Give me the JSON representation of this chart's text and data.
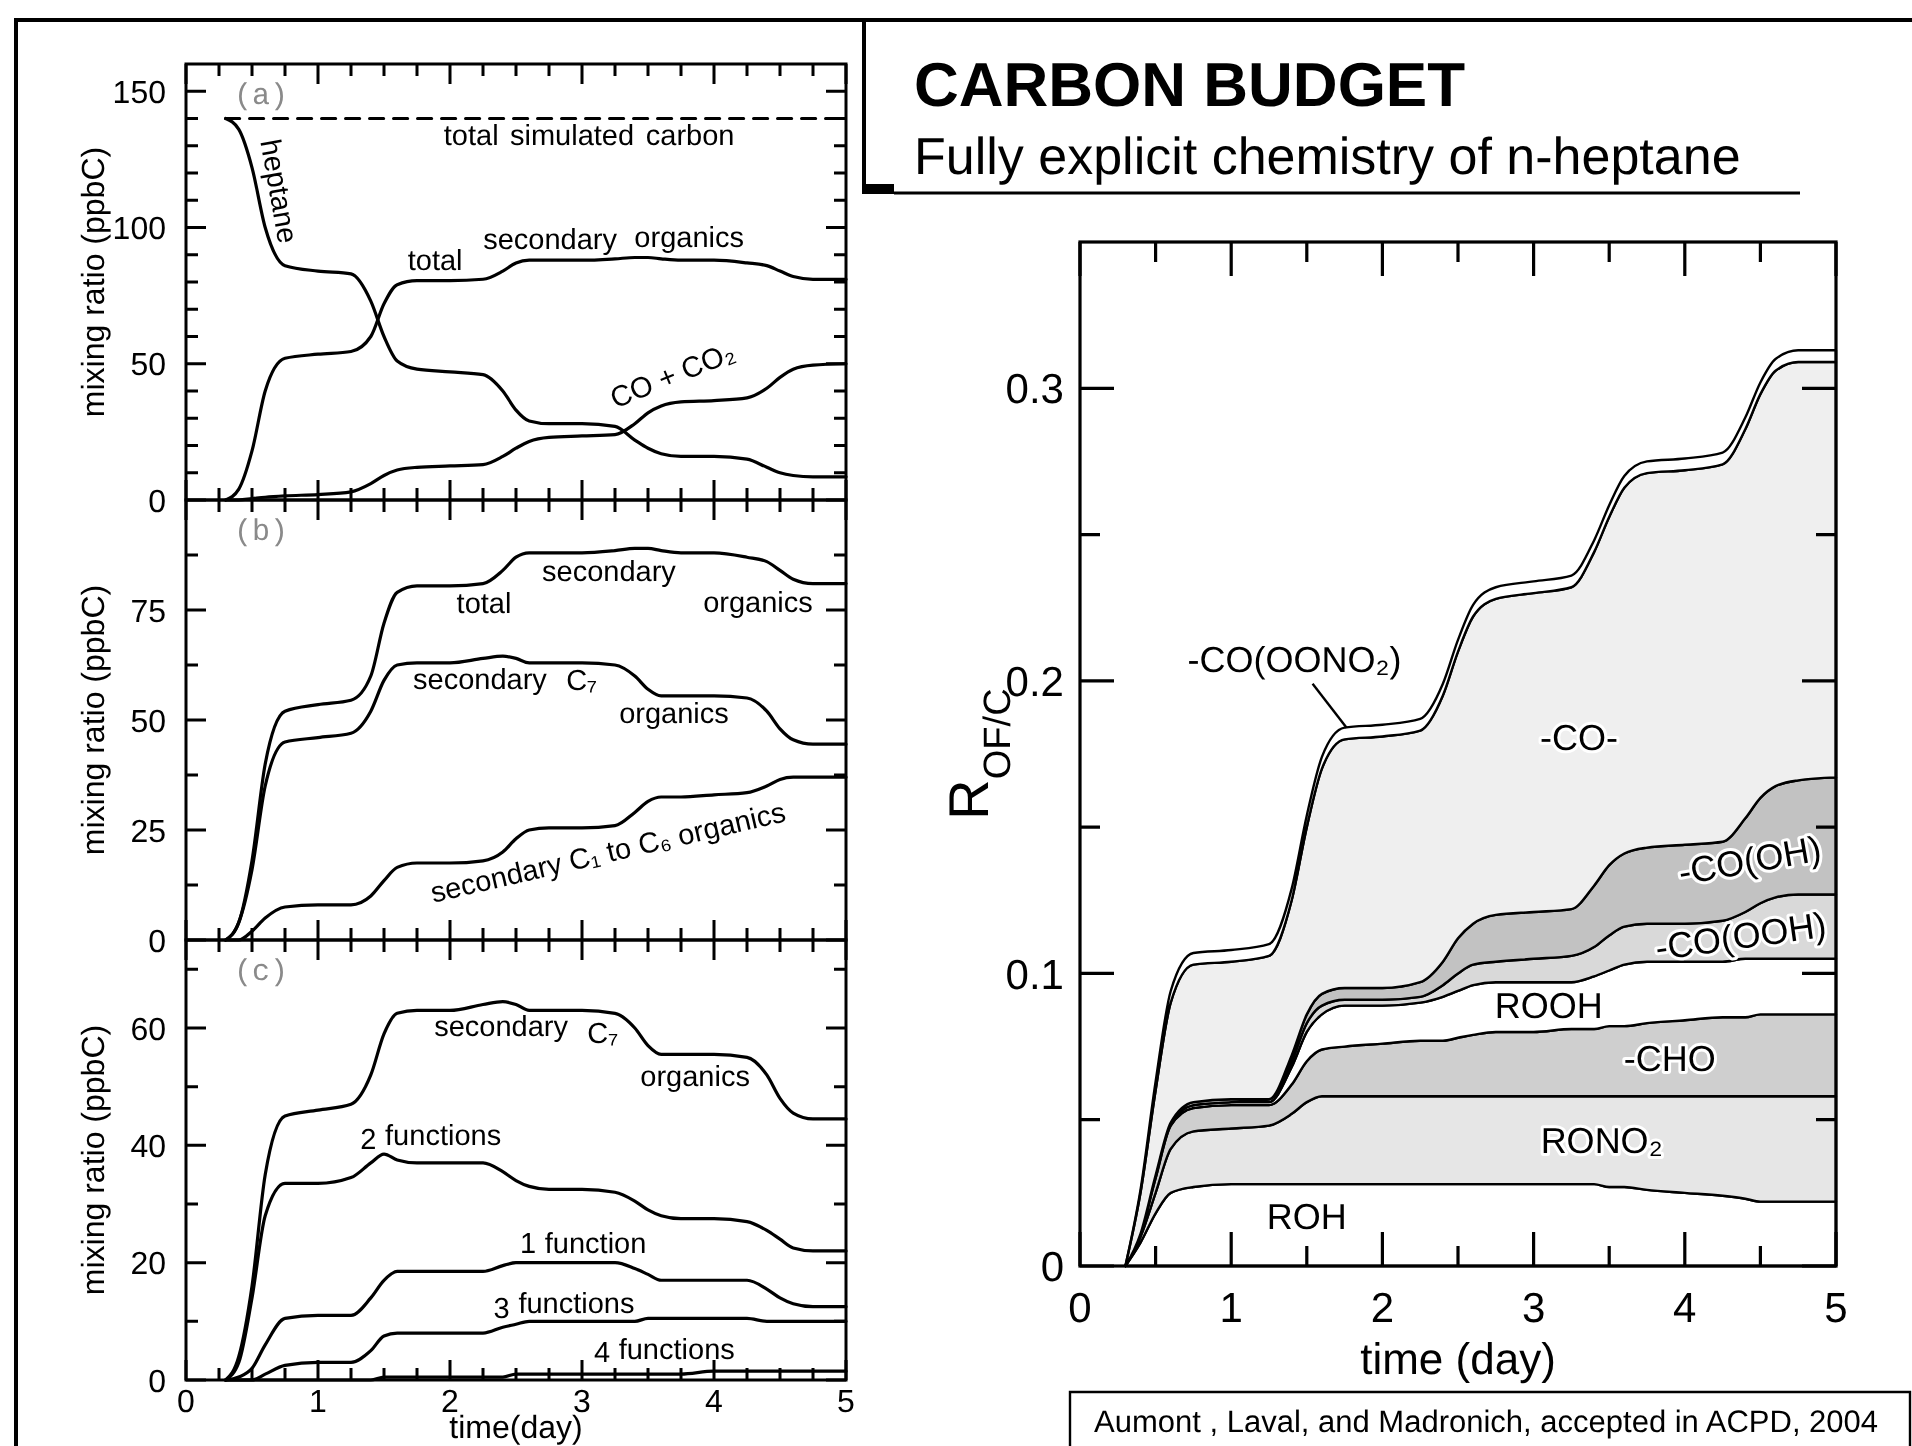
{
  "chart_data": [
    {
      "type": "line",
      "annotations": [
        "(a)"
      ],
      "ylabel": "mixing ratio (ppbC)",
      "xlim": [
        0,
        5
      ],
      "ylim": [
        0,
        160
      ],
      "tick_labels": "y",
      "xticks": [
        0,
        {
          "value": 0.25,
          "label": null
        },
        {
          "value": 0.5,
          "label": null
        },
        {
          "value": 0.75,
          "label": null
        },
        1,
        {
          "value": 1.25,
          "label": null
        },
        {
          "value": 1.5,
          "label": null
        },
        {
          "value": 1.75,
          "label": null
        },
        2,
        {
          "value": 2.25,
          "label": null
        },
        {
          "value": 2.5,
          "label": null
        },
        {
          "value": 2.75,
          "label": null
        },
        3,
        {
          "value": 3.25,
          "label": null
        },
        {
          "value": 3.5,
          "label": null
        },
        {
          "value": 3.75,
          "label": null
        },
        4,
        {
          "value": 4.25,
          "label": null
        },
        {
          "value": 4.5,
          "label": null
        },
        {
          "value": 4.75,
          "label": null
        },
        5
      ],
      "yticks": [
        0,
        {
          "value": 10,
          "label": null
        },
        {
          "value": 20,
          "label": null
        },
        {
          "value": 30,
          "label": null
        },
        {
          "value": 40,
          "label": null
        },
        50,
        {
          "value": 60,
          "label": null
        },
        {
          "value": 70,
          "label": null
        },
        {
          "value": 80,
          "label": null
        },
        {
          "value": 90,
          "label": null
        },
        100,
        {
          "value": 110,
          "label": null
        },
        {
          "value": 120,
          "label": null
        },
        {
          "value": 130,
          "label": null
        },
        {
          "value": 140,
          "label": null
        },
        150
      ],
      "x": [
        0.3,
        0.4,
        0.5,
        0.6,
        0.75,
        1,
        1.25,
        1.4,
        1.5,
        1.6,
        1.75,
        2,
        2.25,
        2.4,
        2.5,
        2.6,
        2.75,
        3,
        3.25,
        3.4,
        3.5,
        3.6,
        3.75,
        4,
        4.25,
        4.4,
        4.5,
        4.6,
        4.75,
        5
      ],
      "series": [
        {
          "name": "total simulated carbon",
          "color": "#000000",
          "line_style": "dashed",
          "x": [
            0.3,
            5
          ],
          "values": [
            140,
            140
          ]
        },
        {
          "name": "heptane",
          "color": "#000000",
          "values": [
            140,
            136,
            122,
            100,
            86,
            84,
            83,
            73,
            60,
            51,
            48,
            47,
            46,
            40,
            33,
            29,
            28,
            28,
            27,
            22,
            19,
            17,
            16,
            16,
            15,
            12,
            10,
            9,
            8.5,
            8.5
          ]
        },
        {
          "name": "total secondary organics",
          "color": "#000000",
          "values": [
            0,
            4,
            18,
            40,
            52,
            53.5,
            54.5,
            60,
            72,
            79,
            80.5,
            80.5,
            81,
            84,
            87,
            88,
            88,
            88,
            88.5,
            89,
            89,
            88.5,
            88,
            88,
            87,
            86,
            84,
            82,
            81,
            81
          ]
        },
        {
          "name": "CO + CO₂",
          "color": "#000000",
          "values": [
            0,
            0,
            0.5,
            1,
            1.5,
            2,
            3,
            6,
            9,
            11,
            12,
            12.5,
            13,
            16,
            19,
            21.5,
            23,
            23.5,
            24,
            28,
            32,
            34.5,
            36,
            36.5,
            37.5,
            41,
            45,
            48,
            49.5,
            50
          ]
        }
      ]
    },
    {
      "type": "line",
      "annotations": [
        "(b)"
      ],
      "ylabel": "mixing ratio (ppbC)",
      "xlim": [
        0,
        5
      ],
      "ylim": [
        0,
        100
      ],
      "tick_labels": "y",
      "xticks": [
        0,
        {
          "value": 0.25,
          "label": null
        },
        {
          "value": 0.5,
          "label": null
        },
        {
          "value": 0.75,
          "label": null
        },
        1,
        {
          "value": 1.25,
          "label": null
        },
        {
          "value": 1.5,
          "label": null
        },
        {
          "value": 1.75,
          "label": null
        },
        2,
        {
          "value": 2.25,
          "label": null
        },
        {
          "value": 2.5,
          "label": null
        },
        {
          "value": 2.75,
          "label": null
        },
        3,
        {
          "value": 3.25,
          "label": null
        },
        {
          "value": 3.5,
          "label": null
        },
        {
          "value": 3.75,
          "label": null
        },
        4,
        {
          "value": 4.25,
          "label": null
        },
        {
          "value": 4.5,
          "label": null
        },
        {
          "value": 4.75,
          "label": null
        },
        5
      ],
      "yticks": [
        0,
        {
          "value": 12.5,
          "label": null
        },
        25,
        {
          "value": 37.5,
          "label": null
        },
        50,
        {
          "value": 62.5,
          "label": null
        },
        75,
        {
          "value": 87.5,
          "label": null
        }
      ],
      "x": [
        0.3,
        0.4,
        0.5,
        0.6,
        0.75,
        1,
        1.25,
        1.4,
        1.5,
        1.6,
        1.75,
        2,
        2.25,
        2.4,
        2.5,
        2.6,
        2.75,
        3,
        3.25,
        3.4,
        3.5,
        3.6,
        3.75,
        4,
        4.25,
        4.4,
        4.5,
        4.6,
        4.75,
        5
      ],
      "series": [
        {
          "name": "total secondary organics",
          "color": "#000000",
          "values": [
            0,
            4,
            18,
            40,
            52,
            53.5,
            54.5,
            60,
            72,
            79,
            80.5,
            80.5,
            81,
            84,
            87,
            88,
            88,
            88,
            88.5,
            89,
            89,
            88.5,
            88,
            88,
            87,
            86,
            84,
            82,
            81,
            81
          ]
        },
        {
          "name": "secondary C₇ organics",
          "color": "#000000",
          "values": [
            0,
            4,
            16,
            35,
            45,
            46,
            47,
            52,
            59,
            62.5,
            63,
            63,
            64,
            64.5,
            64,
            63,
            63,
            63,
            62.5,
            60,
            57,
            55.5,
            55.5,
            55.5,
            55,
            52,
            48,
            45.5,
            44.5,
            44.5
          ]
        },
        {
          "name": "secondary C₁ to C₆ organics",
          "color": "#000000",
          "values": [
            0,
            0,
            2,
            5,
            7.5,
            8,
            8,
            10,
            13.5,
            16.5,
            17.5,
            17.5,
            18,
            20,
            23,
            25,
            25.5,
            25.5,
            26,
            29,
            31.5,
            32.5,
            32.5,
            33,
            33.5,
            35,
            36.5,
            37,
            37,
            37
          ]
        }
      ]
    },
    {
      "type": "line",
      "annotations": [
        "(c)"
      ],
      "ylabel": "mixing ratio (ppbC)",
      "xlabel": "time(day)",
      "xlim": [
        0,
        5
      ],
      "ylim": [
        0,
        75
      ],
      "xticks": [
        0,
        {
          "value": 0.25,
          "label": null
        },
        {
          "value": 0.5,
          "label": null
        },
        {
          "value": 0.75,
          "label": null
        },
        1,
        {
          "value": 1.25,
          "label": null
        },
        {
          "value": 1.5,
          "label": null
        },
        {
          "value": 1.75,
          "label": null
        },
        2,
        {
          "value": 2.25,
          "label": null
        },
        {
          "value": 2.5,
          "label": null
        },
        {
          "value": 2.75,
          "label": null
        },
        3,
        {
          "value": 3.25,
          "label": null
        },
        {
          "value": 3.5,
          "label": null
        },
        {
          "value": 3.75,
          "label": null
        },
        4,
        {
          "value": 4.25,
          "label": null
        },
        {
          "value": 4.5,
          "label": null
        },
        {
          "value": 4.75,
          "label": null
        },
        5
      ],
      "yticks": [
        0,
        {
          "value": 10,
          "label": null
        },
        20,
        {
          "value": 30,
          "label": null
        },
        40,
        {
          "value": 50,
          "label": null
        },
        60,
        {
          "value": 70,
          "label": null
        }
      ],
      "x": [
        0.3,
        0.4,
        0.5,
        0.6,
        0.75,
        1,
        1.25,
        1.4,
        1.5,
        1.6,
        1.75,
        2,
        2.25,
        2.4,
        2.5,
        2.6,
        2.75,
        3,
        3.25,
        3.4,
        3.5,
        3.6,
        3.75,
        4,
        4.25,
        4.4,
        4.5,
        4.6,
        4.75,
        5
      ],
      "series": [
        {
          "name": "secondary C₇ organics",
          "color": "#000000",
          "values": [
            0,
            4,
            16,
            35,
            45,
            46,
            47,
            52,
            59,
            62.5,
            63,
            63,
            64,
            64.5,
            64,
            63,
            63,
            63,
            62.5,
            60,
            57,
            55.5,
            55.5,
            55.5,
            55,
            52,
            48,
            45.5,
            44.5,
            44.5
          ]
        },
        {
          "name": "2 functions",
          "color": "#000000",
          "values": [
            0,
            3,
            14,
            28,
            33.5,
            33.5,
            34.5,
            37,
            38.5,
            37.5,
            37,
            37,
            37,
            35.5,
            34,
            33,
            32.5,
            32.5,
            32,
            30.5,
            29,
            28,
            27.5,
            27.5,
            27,
            25.5,
            24,
            22.5,
            22,
            22
          ]
        },
        {
          "name": "1 function",
          "color": "#000000",
          "values": [
            0,
            0.5,
            2,
            6,
            10.5,
            11,
            11,
            14,
            17,
            18.5,
            18.5,
            18.5,
            18.5,
            19.5,
            20,
            20,
            20,
            20,
            20,
            19,
            18,
            17,
            17,
            17,
            17,
            15.5,
            14,
            13,
            12.5,
            12.5
          ]
        },
        {
          "name": "3 functions",
          "color": "#000000",
          "values": [
            0,
            0,
            0,
            1,
            2.5,
            3,
            3,
            5,
            7.5,
            8,
            8,
            8,
            8,
            9,
            9.5,
            10,
            10,
            10,
            10,
            10,
            10.5,
            10.5,
            10.5,
            10.5,
            10.5,
            10,
            10,
            10,
            10,
            10
          ]
        },
        {
          "name": "4 functions",
          "color": "#000000",
          "values": [
            0,
            0,
            0,
            0,
            0,
            0,
            0,
            0,
            0.5,
            0.5,
            0.5,
            0.5,
            0.5,
            0.5,
            1,
            1,
            1,
            1,
            1,
            1,
            1,
            1,
            1,
            1.5,
            1.5,
            1.5,
            1.5,
            1.5,
            1.5,
            1.5
          ]
        }
      ]
    },
    {
      "type": "area",
      "stacked": true,
      "title": "CARBON BUDGET",
      "subtitle": "Fully explicit chemistry of n-heptane",
      "xlabel": "time (day)",
      "ylabel": "R$_{OF/C}$",
      "annotations": [
        "Aumont , Laval, and Madronich, accepted in ACPD, 2004"
      ],
      "xlim": [
        0,
        5
      ],
      "ylim": [
        0,
        0.35
      ],
      "xticks": [
        0,
        {
          "value": 0.5,
          "label": null
        },
        1,
        {
          "value": 1.5,
          "label": null
        },
        2,
        {
          "value": 2.5,
          "label": null
        },
        3,
        {
          "value": 3.5,
          "label": null
        },
        4,
        {
          "value": 4.5,
          "label": null
        },
        5
      ],
      "yticks": [
        0,
        {
          "value": 0.05,
          "label": null
        },
        0.1,
        {
          "value": 0.15,
          "label": null
        },
        0.2,
        {
          "value": 0.25,
          "label": null
        },
        0.3
      ],
      "x": [
        0.3,
        0.4,
        0.5,
        0.6,
        0.75,
        1,
        1.25,
        1.4,
        1.5,
        1.6,
        1.75,
        2,
        2.25,
        2.4,
        2.5,
        2.6,
        2.75,
        3,
        3.25,
        3.4,
        3.5,
        3.6,
        3.75,
        4,
        4.25,
        4.4,
        4.5,
        4.6,
        4.75,
        5
      ],
      "series": [
        {
          "name": "ROH",
          "color": "#ffffff",
          "values": [
            0,
            0.008,
            0.018,
            0.025,
            0.027,
            0.028,
            0.028,
            0.028,
            0.028,
            0.028,
            0.028,
            0.028,
            0.028,
            0.028,
            0.028,
            0.028,
            0.028,
            0.028,
            0.028,
            0.028,
            0.027,
            0.027,
            0.026,
            0.025,
            0.024,
            0.023,
            0.022,
            0.022,
            0.022,
            0.022
          ]
        },
        {
          "name": "RONO₂",
          "color": "#e6e6e6",
          "values": [
            0,
            0.002,
            0.007,
            0.015,
            0.019,
            0.019,
            0.02,
            0.024,
            0.028,
            0.03,
            0.03,
            0.03,
            0.03,
            0.03,
            0.03,
            0.03,
            0.03,
            0.03,
            0.03,
            0.03,
            0.031,
            0.031,
            0.032,
            0.033,
            0.034,
            0.035,
            0.036,
            0.036,
            0.036,
            0.036
          ]
        },
        {
          "name": "-CHO",
          "color": "#cfcfcf",
          "values": [
            0,
            0.001,
            0.005,
            0.008,
            0.008,
            0.008,
            0.007,
            0.01,
            0.014,
            0.016,
            0.017,
            0.018,
            0.019,
            0.019,
            0.02,
            0.021,
            0.022,
            0.022,
            0.023,
            0.023,
            0.024,
            0.024,
            0.025,
            0.026,
            0.027,
            0.027,
            0.028,
            0.028,
            0.028,
            0.028
          ]
        },
        {
          "name": "ROOH",
          "color": "#ffffff",
          "values": [
            0,
            0,
            0.001,
            0.001,
            0.001,
            0.001,
            0.001,
            0.006,
            0.01,
            0.012,
            0.014,
            0.013,
            0.013,
            0.015,
            0.016,
            0.017,
            0.017,
            0.017,
            0.016,
            0.018,
            0.019,
            0.021,
            0.021,
            0.02,
            0.019,
            0.02,
            0.019,
            0.019,
            0.019,
            0.019
          ]
        },
        {
          "name": "-CO(OOH)",
          "color": "#d9d9d9",
          "values": [
            0,
            0,
            0,
            0,
            0,
            0,
            0.001,
            0.002,
            0.003,
            0.003,
            0.002,
            0.002,
            0.002,
            0.004,
            0.006,
            0.007,
            0.007,
            0.008,
            0.009,
            0.01,
            0.012,
            0.013,
            0.013,
            0.013,
            0.014,
            0.016,
            0.019,
            0.021,
            0.022,
            0.022
          ]
        },
        {
          "name": "-CO(OH)",
          "color": "#c2c2c2",
          "values": [
            0,
            0,
            0,
            0,
            0.001,
            0.001,
            0,
            0.002,
            0.003,
            0.004,
            0.004,
            0.004,
            0.005,
            0.008,
            0.012,
            0.014,
            0.016,
            0.016,
            0.016,
            0.021,
            0.024,
            0.025,
            0.026,
            0.027,
            0.027,
            0.032,
            0.036,
            0.038,
            0.039,
            0.04
          ]
        },
        {
          "name": "-CO-",
          "color": "#efefef",
          "values": [
            0,
            0.014,
            0.029,
            0.041,
            0.047,
            0.047,
            0.049,
            0.053,
            0.064,
            0.077,
            0.085,
            0.086,
            0.086,
            0.091,
            0.098,
            0.105,
            0.108,
            0.109,
            0.11,
            0.114,
            0.119,
            0.125,
            0.128,
            0.128,
            0.129,
            0.133,
            0.138,
            0.142,
            0.143,
            0.142
          ]
        },
        {
          "name": "-CO(OONO₂)",
          "color": "#ffffff",
          "values": [
            0,
            0.001,
            0.003,
            0.004,
            0.004,
            0.004,
            0.004,
            0.004,
            0.004,
            0.004,
            0.004,
            0.004,
            0.004,
            0.004,
            0.004,
            0.004,
            0.004,
            0.004,
            0.004,
            0.004,
            0.004,
            0.004,
            0.004,
            0.004,
            0.004,
            0.004,
            0.004,
            0.004,
            0.004,
            0.004
          ]
        }
      ]
    }
  ]
}
